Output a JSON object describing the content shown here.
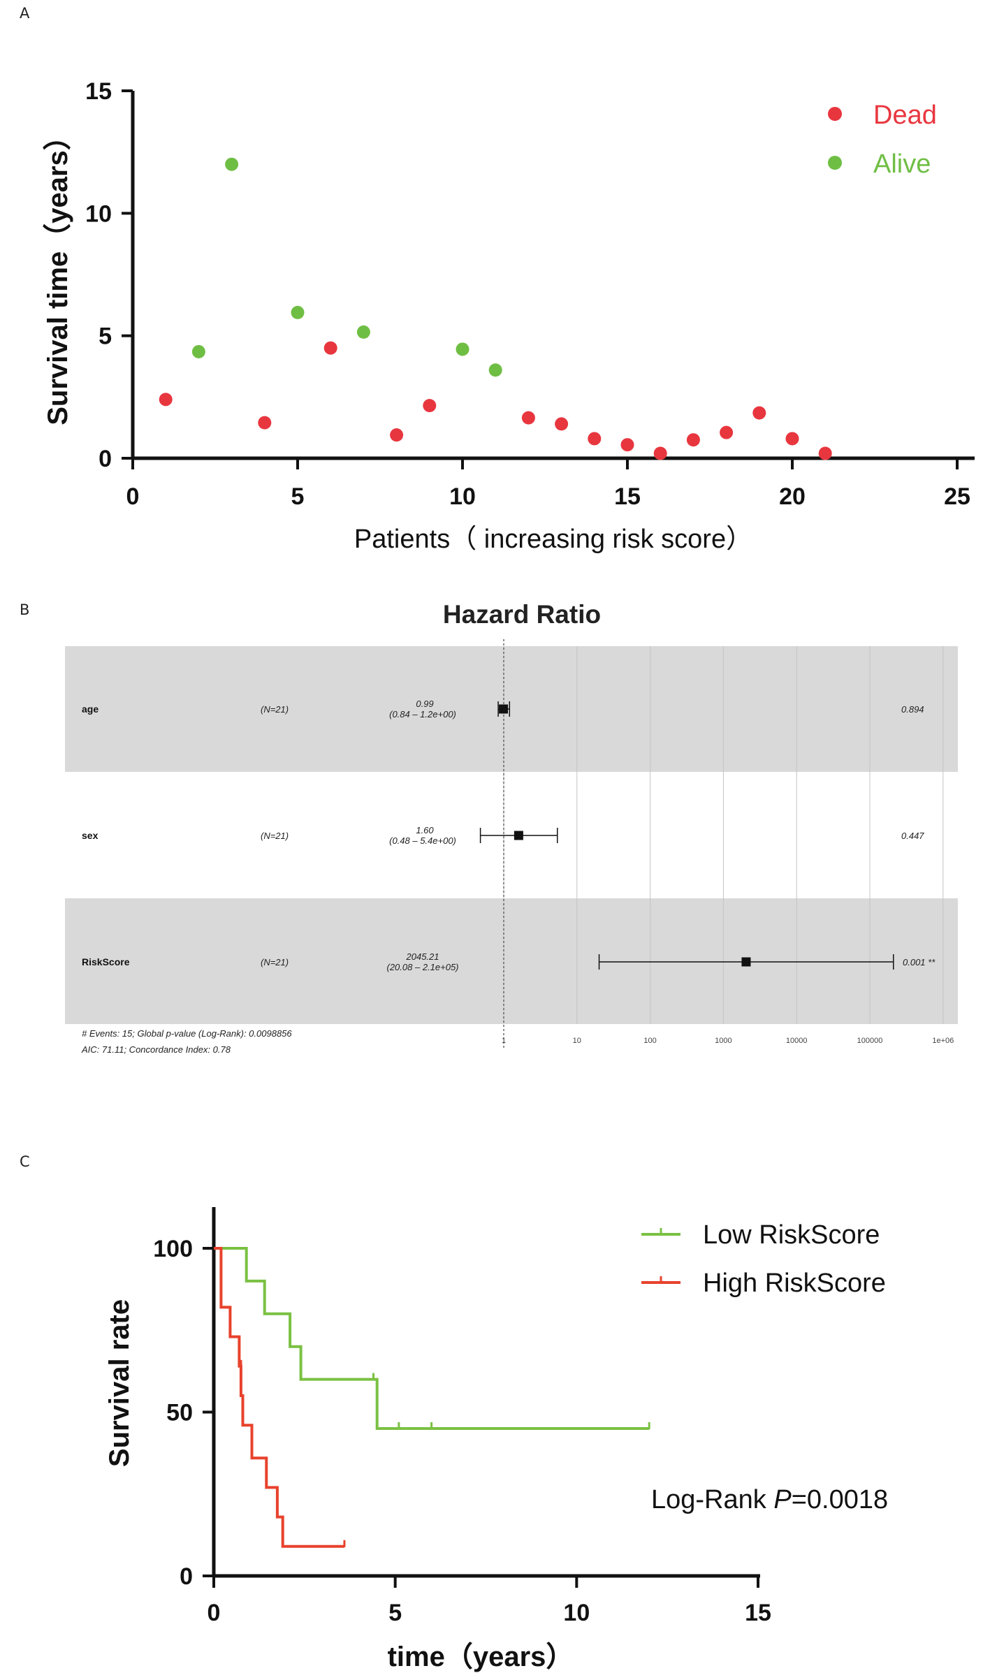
{
  "panels": {
    "a_letter": "A",
    "b_letter": "B",
    "c_letter": "C"
  },
  "colors": {
    "dead": "#e8363f",
    "alive": "#6fbe44",
    "low_risk": "#7ac143",
    "high_risk": "#e8422c",
    "forest_band": "#d9d9d9"
  },
  "chart_data": [
    {
      "type": "scatter",
      "title": "",
      "xlabel": "Patients（ increasing risk score）",
      "ylabel": "Survival time（years）",
      "xlim": [
        0,
        25
      ],
      "ylim": [
        0,
        15
      ],
      "xticks": [
        "0",
        "5",
        "10",
        "15",
        "20",
        "25"
      ],
      "yticks": [
        "0",
        "5",
        "10",
        "15"
      ],
      "legend": {
        "position": "top-right",
        "dead_label": "Dead",
        "alive_label": "Alive"
      },
      "series": [
        {
          "name": "Dead",
          "points": [
            [
              1,
              2.4
            ],
            [
              4,
              1.45
            ],
            [
              6,
              4.5
            ],
            [
              8,
              0.95
            ],
            [
              9,
              2.15
            ],
            [
              12,
              1.65
            ],
            [
              13,
              1.4
            ],
            [
              14,
              0.8
            ],
            [
              15,
              0.55
            ],
            [
              16,
              0.2
            ],
            [
              17,
              0.75
            ],
            [
              18,
              1.05
            ],
            [
              19,
              1.85
            ],
            [
              20,
              0.8
            ],
            [
              21,
              0.2
            ]
          ]
        },
        {
          "name": "Alive",
          "points": [
            [
              2,
              4.35
            ],
            [
              3,
              12.0
            ],
            [
              5,
              5.95
            ],
            [
              7,
              5.15
            ],
            [
              10,
              4.45
            ],
            [
              11,
              3.6
            ]
          ]
        }
      ]
    },
    {
      "type": "forest",
      "title": "Hazard Ratio",
      "axis_ticks": [
        "1",
        "10",
        "100",
        "1000",
        "10000",
        "100000",
        "1e+06"
      ],
      "rows": [
        {
          "variable": "age",
          "n": "(N=21)",
          "hr_label": "0.99",
          "ci_label": "(0.84 – 1.2e+00)",
          "hr": 0.99,
          "lo": 0.84,
          "hi": 1.2,
          "p": "0.894"
        },
        {
          "variable": "sex",
          "n": "(N=21)",
          "hr_label": "1.60",
          "ci_label": "(0.48 – 5.4e+00)",
          "hr": 1.6,
          "lo": 0.48,
          "hi": 5.4,
          "p": "0.447"
        },
        {
          "variable": "RiskScore",
          "n": "(N=21)",
          "hr_label": "2045.21",
          "ci_label": "(20.08 – 2.1e+05)",
          "hr": 2045.21,
          "lo": 20.08,
          "hi": 210000,
          "p": "0.001 **"
        }
      ],
      "footer_line1": "# Events: 15; Global p-value (Log-Rank): 0.0098856",
      "footer_line2": "AIC: 71.11; Concordance Index: 0.78"
    },
    {
      "type": "line",
      "subtype": "kaplan-meier",
      "xlabel": "time（years）",
      "ylabel": "Survival rate",
      "xlim": [
        0,
        15
      ],
      "ylim": [
        0,
        100
      ],
      "xticks": [
        "0",
        "5",
        "10",
        "15"
      ],
      "yticks": [
        "0",
        "50",
        "100"
      ],
      "annotation_prefix": "Log-Rank ",
      "annotation_p": "P",
      "annotation_value": "=0.0018",
      "legend": {
        "position": "top-right"
      },
      "series": [
        {
          "name": "Low RiskScore",
          "steps": [
            [
              0,
              100
            ],
            [
              0.9,
              100
            ],
            [
              0.9,
              90
            ],
            [
              1.4,
              90
            ],
            [
              1.4,
              80
            ],
            [
              2.1,
              80
            ],
            [
              2.1,
              70
            ],
            [
              2.4,
              70
            ],
            [
              2.4,
              60
            ],
            [
              4.5,
              60
            ],
            [
              4.5,
              45
            ],
            [
              12.0,
              45
            ]
          ],
          "censors": [
            [
              4.4,
              60
            ],
            [
              5.1,
              45
            ],
            [
              6.0,
              45
            ],
            [
              12.0,
              45
            ]
          ]
        },
        {
          "name": "High RiskScore",
          "steps": [
            [
              0,
              100
            ],
            [
              0.2,
              100
            ],
            [
              0.2,
              82
            ],
            [
              0.45,
              82
            ],
            [
              0.45,
              73
            ],
            [
              0.7,
              73
            ],
            [
              0.7,
              64
            ],
            [
              0.75,
              64
            ],
            [
              0.75,
              55
            ],
            [
              0.8,
              55
            ],
            [
              0.8,
              46
            ],
            [
              1.05,
              46
            ],
            [
              1.05,
              36
            ],
            [
              1.45,
              36
            ],
            [
              1.45,
              27
            ],
            [
              1.75,
              27
            ],
            [
              1.75,
              18
            ],
            [
              1.9,
              18
            ],
            [
              1.9,
              9
            ],
            [
              3.6,
              9
            ]
          ],
          "censors": [
            [
              0.75,
              64
            ],
            [
              3.6,
              9
            ]
          ]
        }
      ]
    }
  ]
}
